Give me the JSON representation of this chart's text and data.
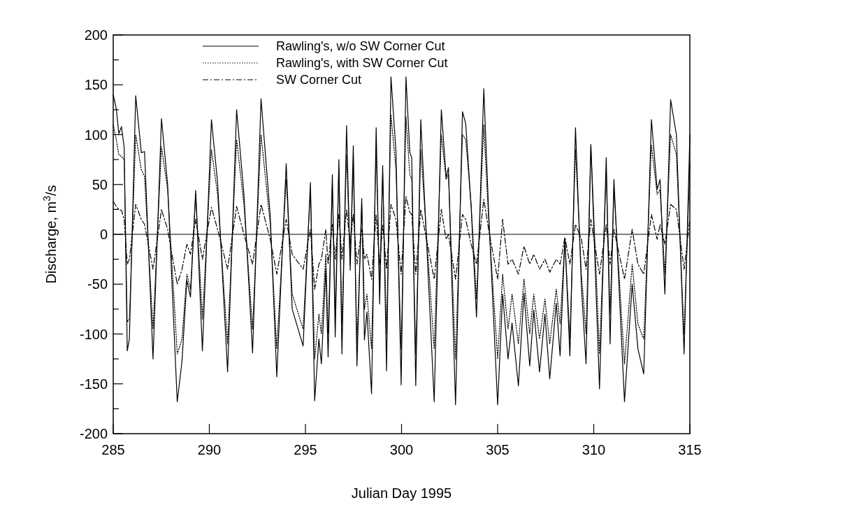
{
  "chart_data": {
    "type": "line",
    "xlabel": "Julian Day 1995",
    "ylabel": "Discharge, m$^{3}$/s",
    "x": [
      285.0,
      285.16,
      285.29,
      285.43,
      285.57,
      285.73,
      285.84,
      286.17,
      286.46,
      286.63,
      287.07,
      287.51,
      287.83,
      288.33,
      288.58,
      288.83,
      289.02,
      289.29,
      289.64,
      290.11,
      290.43,
      290.95,
      291.42,
      291.8,
      292.25,
      292.69,
      293.17,
      293.51,
      294.0,
      294.31,
      294.88,
      295.26,
      295.48,
      295.7,
      295.83,
      296.06,
      296.18,
      296.4,
      296.55,
      296.74,
      296.9,
      297.14,
      297.33,
      297.49,
      297.68,
      297.93,
      298.07,
      298.2,
      298.44,
      298.68,
      298.86,
      299.02,
      299.22,
      299.45,
      299.71,
      299.98,
      300.23,
      300.43,
      300.53,
      300.74,
      301.0,
      301.7,
      302.07,
      302.32,
      302.44,
      302.81,
      303.17,
      303.34,
      303.62,
      303.9,
      304.28,
      304.53,
      305.0,
      305.26,
      305.54,
      305.75,
      306.08,
      306.37,
      306.67,
      306.88,
      307.18,
      307.46,
      307.71,
      308.05,
      308.25,
      308.5,
      308.76,
      309.05,
      309.36,
      309.6,
      309.85,
      310.3,
      310.65,
      310.85,
      311.05,
      311.6,
      312.0,
      312.3,
      312.6,
      313.0,
      313.3,
      313.45,
      313.7,
      314.0,
      314.3,
      314.7,
      315.0
    ],
    "series": [
      {
        "name": "Rawling's, w/o SW Corner Cut",
        "color": "#000000",
        "line_style": "solid",
        "values": [
          140,
          126,
          101,
          108,
          87,
          -117,
          -105,
          139,
          82,
          83,
          -125,
          116,
          50,
          -168,
          -127,
          -46,
          -63,
          44,
          -117,
          115,
          52,
          -138,
          125,
          40,
          -119,
          136,
          18,
          -143,
          71,
          -75,
          -112,
          52,
          -167,
          -105,
          -130,
          -34,
          -123,
          60,
          -103,
          75,
          -120,
          109,
          -36,
          89,
          -132,
          36,
          -106,
          -78,
          -160,
          107,
          -70,
          69,
          -137,
          158,
          83,
          -151,
          158,
          82,
          77,
          -152,
          115,
          -168,
          125,
          57,
          67,
          -171,
          123,
          111,
          28,
          -83,
          146,
          23,
          -171,
          -60,
          -125,
          -89,
          -152,
          -59,
          -132,
          -76,
          -138,
          -80,
          -145,
          -69,
          -122,
          -4,
          -122,
          107,
          -53,
          -130,
          90,
          -155,
          77,
          -110,
          55,
          -168,
          -50,
          -115,
          -140,
          115,
          45,
          55,
          -60,
          135,
          100,
          -120,
          100
        ]
      },
      {
        "name": "Rawling's, with SW Corner Cut",
        "color": "#000000",
        "line_style": "dotted",
        "values": [
          110,
          95,
          80,
          78,
          75,
          -88,
          -85,
          100,
          65,
          58,
          -95,
          88,
          45,
          -120,
          -105,
          -40,
          -55,
          40,
          -85,
          85,
          40,
          -110,
          95,
          30,
          -95,
          100,
          10,
          -115,
          55,
          -60,
          -95,
          45,
          -125,
          -80,
          -100,
          -20,
          -100,
          50,
          -80,
          65,
          -90,
          80,
          -30,
          70,
          -110,
          30,
          -75,
          -60,
          -115,
          85,
          -55,
          60,
          -100,
          120,
          65,
          -115,
          118,
          60,
          55,
          -120,
          85,
          -115,
          100,
          55,
          60,
          -125,
          100,
          95,
          30,
          -65,
          110,
          15,
          -125,
          -40,
          -95,
          -60,
          -110,
          -45,
          -100,
          -60,
          -105,
          -65,
          -110,
          -55,
          -90,
          -5,
          -105,
          85,
          -40,
          -100,
          90,
          -120,
          60,
          -80,
          45,
          -130,
          -30,
          -90,
          -105,
          90,
          40,
          45,
          -40,
          100,
          80,
          -100,
          70
        ]
      },
      {
        "name": "SW Corner Cut",
        "color": "#000000",
        "line_style": "dashdot",
        "values": [
          33,
          28,
          25,
          24,
          15,
          -30,
          -25,
          30,
          15,
          10,
          -35,
          25,
          5,
          -50,
          -35,
          -10,
          -20,
          15,
          -25,
          27,
          5,
          -35,
          28,
          0,
          -30,
          30,
          -5,
          -40,
          15,
          -20,
          -35,
          5,
          -55,
          -30,
          -25,
          5,
          -30,
          10,
          -25,
          20,
          -25,
          25,
          -10,
          20,
          -30,
          5,
          -25,
          -20,
          -45,
          20,
          -30,
          10,
          -35,
          30,
          15,
          -40,
          38,
          22,
          20,
          -40,
          25,
          -45,
          25,
          -5,
          0,
          -45,
          20,
          15,
          -10,
          -30,
          35,
          5,
          -45,
          15,
          -30,
          -25,
          -40,
          -12,
          -30,
          -20,
          -35,
          -25,
          -38,
          -25,
          -30,
          -3,
          -30,
          10,
          -5,
          -35,
          15,
          -40,
          10,
          -30,
          5,
          -45,
          5,
          -30,
          -40,
          20,
          -5,
          10,
          -10,
          30,
          25,
          -35,
          15
        ]
      }
    ],
    "xlim": [
      285,
      315
    ],
    "xticks": [
      285,
      290,
      295,
      300,
      305,
      310,
      315
    ],
    "ylim": [
      -200,
      200
    ],
    "yticks": [
      -200,
      {
        "value": -175,
        "label": null
      },
      -150,
      {
        "value": -125,
        "label": null
      },
      -100,
      {
        "value": -75,
        "label": null
      },
      -50,
      {
        "value": -25,
        "label": null
      },
      0,
      {
        "value": 25,
        "label": null
      },
      50,
      {
        "value": 75,
        "label": null
      },
      100,
      {
        "value": 125,
        "label": null
      },
      150,
      {
        "value": 175,
        "label": null
      },
      200
    ],
    "ref_lines": [
      {
        "axis": "y",
        "value": 0,
        "color": "#000000"
      }
    ],
    "legend": "top",
    "grid": false,
    "marker": "none"
  }
}
